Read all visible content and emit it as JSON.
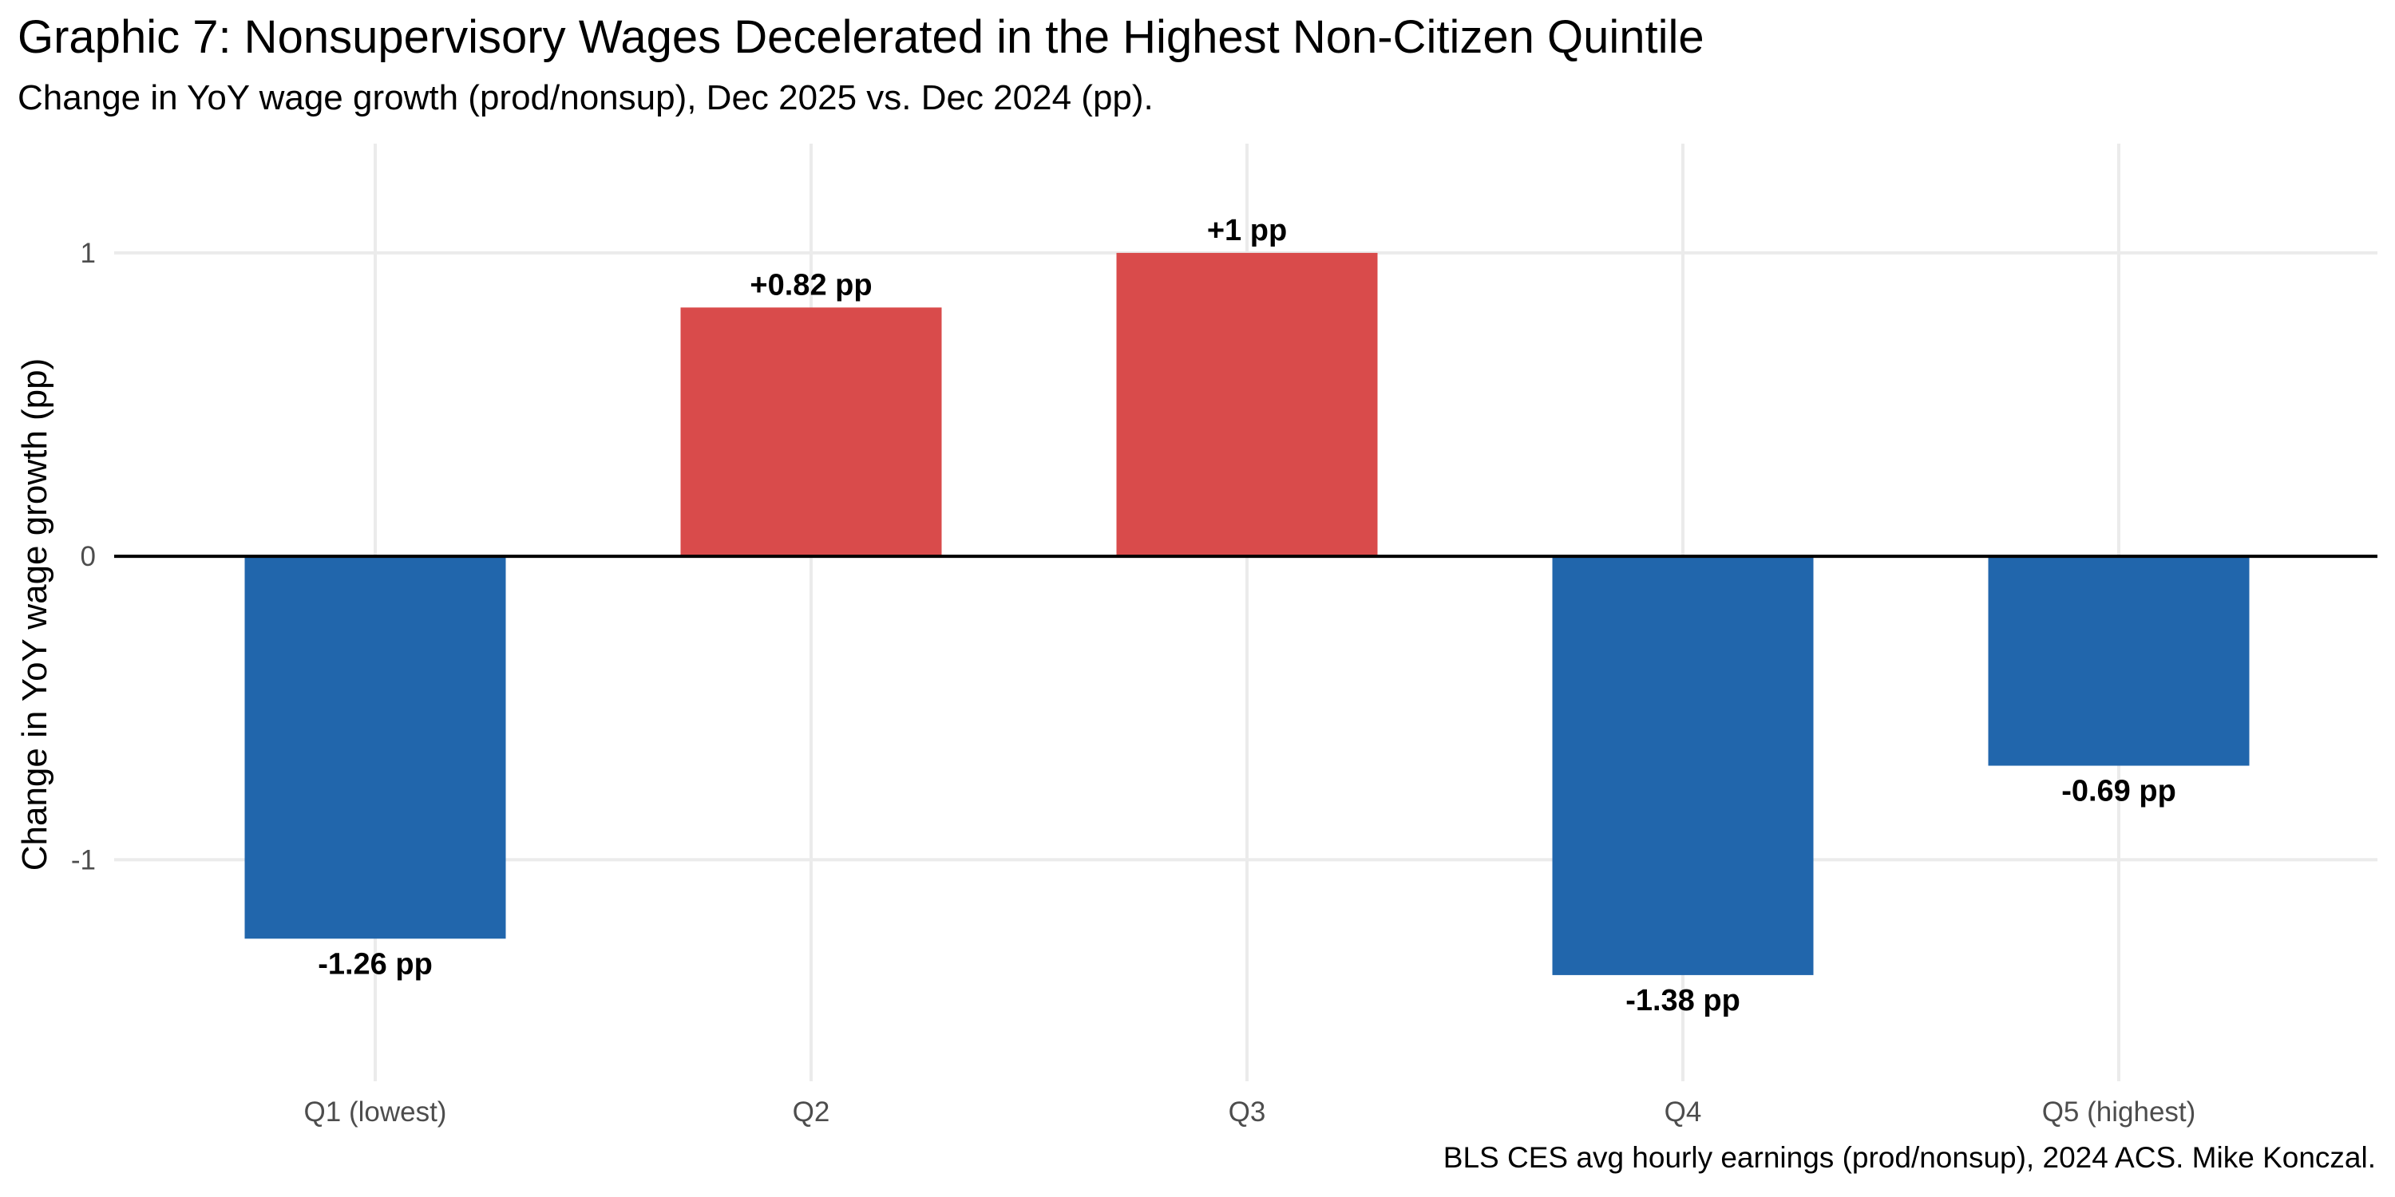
{
  "chart_data": {
    "type": "bar",
    "title": "Graphic 7: Nonsupervisory Wages Decelerated in the Highest Non-Citizen Quintile",
    "subtitle": "Change in YoY wage growth (prod/nonsup), Dec 2025 vs. Dec 2024 (pp).",
    "caption": "BLS CES avg hourly earnings (prod/nonsup), 2024 ACS. Mike Konczal.",
    "xlabel": "",
    "ylabel": "Change in YoY wage growth (pp)",
    "categories": [
      "Q1 (lowest)",
      "Q2",
      "Q3",
      "Q4",
      "Q5 (highest)"
    ],
    "values": [
      -1.26,
      0.82,
      1.0,
      -1.38,
      -0.69
    ],
    "data_labels": [
      "-1.26 pp",
      "+0.82 pp",
      "+1 pp",
      "-1.38 pp",
      "-0.69 pp"
    ],
    "y_ticks": [
      -1,
      0,
      1
    ],
    "y_tick_labels": [
      "-1",
      "0",
      "1"
    ],
    "ylim": [
      -1.73,
      1.36
    ],
    "colors": {
      "positive": "#d94b4b",
      "negative": "#2166ac",
      "zero_line": "#000000",
      "grid": "#ebebeb"
    }
  }
}
